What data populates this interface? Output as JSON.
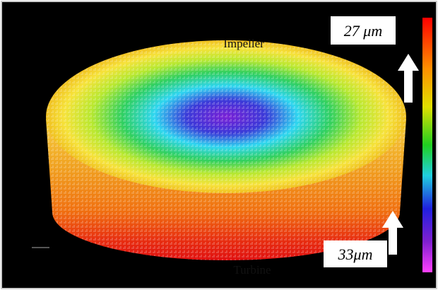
{
  "labels": {
    "top": "Impeller",
    "bottom": "Turbine"
  },
  "annotations": {
    "top": "27 μm",
    "bottom": "33μm"
  }
}
